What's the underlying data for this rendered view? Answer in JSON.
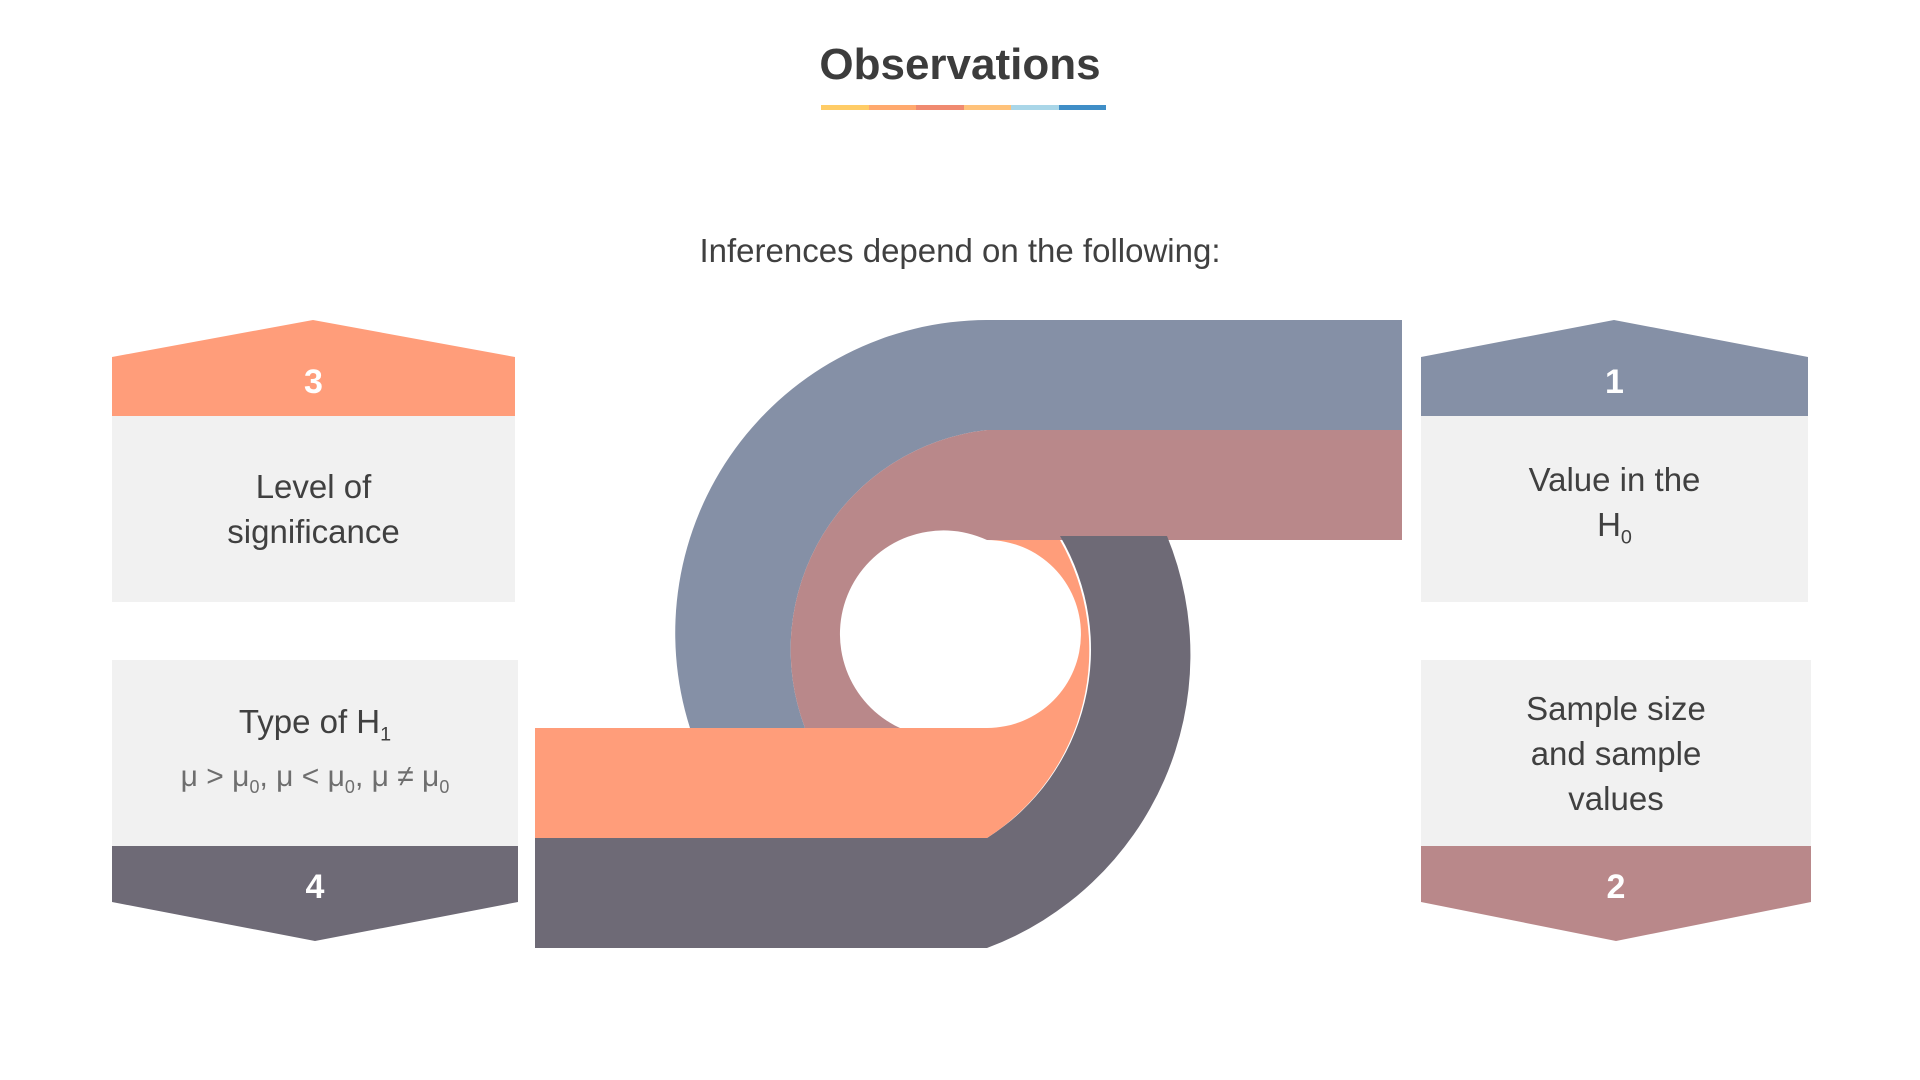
{
  "title": "Observations",
  "subtitle": "Inferences depend on the following:",
  "colors": {
    "slate_blue": "#8590a6",
    "dusty_rose": "#b9888a",
    "salmon": "#ff9d7a",
    "charcoal": "#6e6a76",
    "card_body": "#f1f1f1",
    "underline": [
      "#ffcc66",
      "#ffa96e",
      "#f08a70",
      "#ffc27a",
      "#a9d6e8",
      "#3f8ec7"
    ]
  },
  "items": [
    {
      "number": "1",
      "line1": "Value in the",
      "line2": "H",
      "sub": "0"
    },
    {
      "number": "2",
      "lines": [
        "Sample size",
        "and sample",
        "values"
      ]
    },
    {
      "number": "3",
      "lines": [
        "Level of",
        "significance"
      ]
    },
    {
      "number": "4",
      "heading": "Type of H",
      "heading_sub": "1",
      "formula": {
        "mu": "μ",
        "sub0": "0",
        "gt": " > ",
        "lt": " < ",
        "ne": " ≠ ",
        "sep": ", "
      }
    }
  ]
}
